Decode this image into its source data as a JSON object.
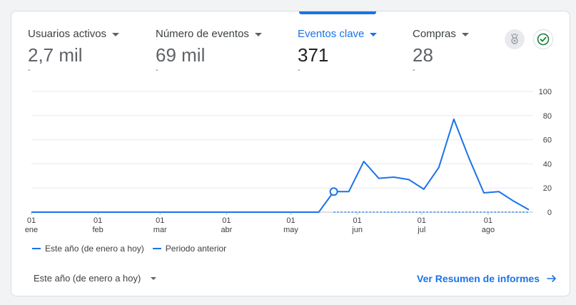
{
  "metrics": [
    {
      "label": "Usuarios activos",
      "value": "2,7 mil",
      "delta": "-"
    },
    {
      "label": "Número de eventos",
      "value": "69 mil",
      "delta": "-"
    },
    {
      "label": "Eventos clave",
      "value": "371",
      "delta": "-",
      "active": true
    },
    {
      "label": "Compras",
      "value": "28",
      "delta": "-"
    }
  ],
  "icons": {
    "badge": "medal-icon",
    "check": "check-circle-icon"
  },
  "legend": {
    "current": "Este año (de enero a hoy)",
    "previous": "Periodo anterior"
  },
  "footer": {
    "date_range": "Este año (de enero a hoy)",
    "report_link": "Ver Resumen de informes"
  },
  "colors": {
    "accent": "#1a73e8",
    "grid": "#e8eaed",
    "check": "#188038"
  },
  "chart_data": {
    "type": "line",
    "series": [
      {
        "name": "Este año (de enero a hoy)",
        "style": "solid"
      },
      {
        "name": "Periodo anterior",
        "style": "dashed"
      }
    ],
    "x_ticks": [
      {
        "day": "01",
        "month": "ene",
        "date": "01-01"
      },
      {
        "day": "01",
        "month": "feb",
        "date": "02-01"
      },
      {
        "day": "01",
        "month": "mar",
        "date": "03-01"
      },
      {
        "day": "01",
        "month": "abr",
        "date": "04-01"
      },
      {
        "day": "01",
        "month": "may",
        "date": "05-01"
      },
      {
        "day": "01",
        "month": "jun",
        "date": "06-01"
      },
      {
        "day": "01",
        "month": "jul",
        "date": "07-01"
      },
      {
        "day": "01",
        "month": "ago",
        "date": "08-01"
      }
    ],
    "y_ticks": [
      0,
      20,
      40,
      60,
      80,
      100
    ],
    "ylim": [
      0,
      100
    ],
    "y_axis_side": "right",
    "grid": true,
    "current": [
      {
        "date": "01-01",
        "y": 0
      },
      {
        "date": "05-14",
        "y": 0
      },
      {
        "date": "05-21",
        "y": 17
      },
      {
        "date": "05-28",
        "y": 17
      },
      {
        "date": "06-04",
        "y": 42
      },
      {
        "date": "06-11",
        "y": 28
      },
      {
        "date": "06-18",
        "y": 29
      },
      {
        "date": "06-25",
        "y": 27
      },
      {
        "date": "07-02",
        "y": 19
      },
      {
        "date": "07-09",
        "y": 37
      },
      {
        "date": "07-16",
        "y": 77
      },
      {
        "date": "07-23",
        "y": 45
      },
      {
        "date": "07-30",
        "y": 16
      },
      {
        "date": "08-06",
        "y": 17
      },
      {
        "date": "08-13",
        "y": 9
      },
      {
        "date": "08-20",
        "y": 2
      }
    ],
    "previous": [
      {
        "date": "01-01",
        "y": 0
      },
      {
        "date": "08-20",
        "y": 0
      }
    ],
    "highlight": {
      "date": "05-21",
      "y": 17
    }
  }
}
